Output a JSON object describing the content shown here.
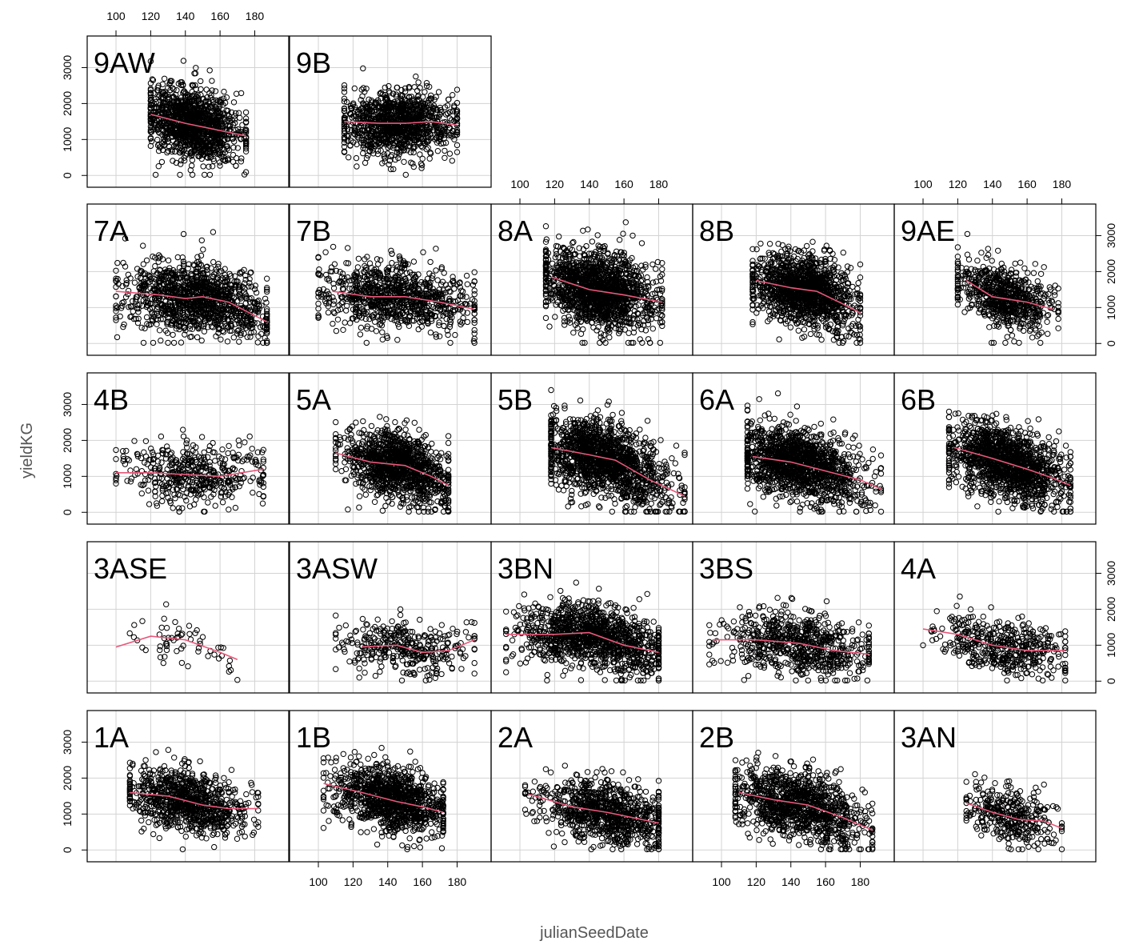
{
  "chart_data": {
    "type": "scatter",
    "xlabel": "julianSeedDate",
    "ylabel": "yieldKG",
    "x_ticks": [
      100,
      120,
      140,
      160,
      180
    ],
    "y_ticks": [
      0,
      1000,
      2000,
      3000
    ],
    "xlim": [
      88,
      195
    ],
    "ylim": [
      -150,
      3700
    ],
    "point_color": "#000000",
    "smooth_color": "#e8587a",
    "grid_color": "#d3d3d3",
    "panels": [
      {
        "label": "1A",
        "row": 0,
        "col": 0,
        "x_range": [
          108,
          182
        ],
        "x_center": 142,
        "y_center": 1350,
        "y_spread": 500,
        "n": 900,
        "smooth": [
          [
            108,
            1600
          ],
          [
            130,
            1500
          ],
          [
            150,
            1250
          ],
          [
            165,
            1150
          ],
          [
            182,
            1150
          ]
        ]
      },
      {
        "label": "1B",
        "row": 0,
        "col": 1,
        "x_range": [
          103,
          172
        ],
        "x_center": 142,
        "y_center": 1350,
        "y_spread": 520,
        "n": 1100,
        "smooth": [
          [
            103,
            1850
          ],
          [
            125,
            1600
          ],
          [
            145,
            1350
          ],
          [
            160,
            1200
          ],
          [
            172,
            1050
          ]
        ]
      },
      {
        "label": "2A",
        "row": 0,
        "col": 2,
        "x_range": [
          103,
          180
        ],
        "x_center": 150,
        "y_center": 1000,
        "y_spread": 500,
        "n": 900,
        "smooth": [
          [
            105,
            1550
          ],
          [
            130,
            1200
          ],
          [
            150,
            1050
          ],
          [
            165,
            900
          ],
          [
            180,
            750
          ]
        ]
      },
      {
        "label": "2B",
        "row": 0,
        "col": 3,
        "x_range": [
          108,
          187
        ],
        "x_center": 145,
        "y_center": 1300,
        "y_spread": 520,
        "n": 1100,
        "smooth": [
          [
            110,
            1600
          ],
          [
            130,
            1400
          ],
          [
            150,
            1250
          ],
          [
            170,
            900
          ],
          [
            187,
            550
          ]
        ]
      },
      {
        "label": "3AN",
        "row": 0,
        "col": 4,
        "x_range": [
          125,
          180
        ],
        "x_center": 150,
        "y_center": 950,
        "y_spread": 450,
        "n": 350,
        "smooth": [
          [
            125,
            1300
          ],
          [
            140,
            1050
          ],
          [
            155,
            850
          ],
          [
            170,
            800
          ],
          [
            180,
            600
          ]
        ]
      },
      {
        "label": "3ASE",
        "row": 1,
        "col": 0,
        "x_range": [
          100,
          170
        ],
        "x_center": 140,
        "y_center": 950,
        "y_spread": 350,
        "n": 60,
        "smooth": [
          [
            100,
            950
          ],
          [
            120,
            1250
          ],
          [
            140,
            1150
          ],
          [
            160,
            800
          ],
          [
            170,
            600
          ]
        ]
      },
      {
        "label": "3ASW",
        "row": 1,
        "col": 1,
        "x_range": [
          110,
          190
        ],
        "x_center": 150,
        "y_center": 900,
        "y_spread": 420,
        "n": 350,
        "smooth": [
          [
            125,
            950
          ],
          [
            145,
            1000
          ],
          [
            160,
            800
          ],
          [
            175,
            850
          ],
          [
            190,
            1150
          ]
        ]
      },
      {
        "label": "3BN",
        "row": 1,
        "col": 2,
        "x_range": [
          92,
          180
        ],
        "x_center": 142,
        "y_center": 1100,
        "y_spread": 520,
        "n": 1200,
        "smooth": [
          [
            92,
            1300
          ],
          [
            120,
            1300
          ],
          [
            140,
            1350
          ],
          [
            160,
            1000
          ],
          [
            180,
            800
          ]
        ]
      },
      {
        "label": "3BS",
        "row": 1,
        "col": 3,
        "x_range": [
          93,
          185
        ],
        "x_center": 145,
        "y_center": 950,
        "y_spread": 480,
        "n": 700,
        "smooth": [
          [
            95,
            1150
          ],
          [
            120,
            1150
          ],
          [
            145,
            1050
          ],
          [
            165,
            850
          ],
          [
            185,
            750
          ]
        ]
      },
      {
        "label": "4A",
        "row": 1,
        "col": 4,
        "x_range": [
          100,
          182
        ],
        "x_center": 145,
        "y_center": 950,
        "y_spread": 420,
        "n": 450,
        "smooth": [
          [
            100,
            1450
          ],
          [
            120,
            1300
          ],
          [
            140,
            1000
          ],
          [
            160,
            850
          ],
          [
            182,
            850
          ]
        ]
      },
      {
        "label": "4B",
        "row": 2,
        "col": 0,
        "x_range": [
          100,
          185
        ],
        "x_center": 145,
        "y_center": 1000,
        "y_spread": 500,
        "n": 450,
        "smooth": [
          [
            100,
            1100
          ],
          [
            120,
            1100
          ],
          [
            140,
            1050
          ],
          [
            160,
            1000
          ],
          [
            185,
            1200
          ]
        ]
      },
      {
        "label": "5A",
        "row": 2,
        "col": 1,
        "x_range": [
          110,
          175
        ],
        "x_center": 145,
        "y_center": 1300,
        "y_spread": 540,
        "n": 1200,
        "smooth": [
          [
            110,
            1650
          ],
          [
            130,
            1400
          ],
          [
            150,
            1300
          ],
          [
            165,
            1000
          ],
          [
            175,
            750
          ]
        ]
      },
      {
        "label": "5B",
        "row": 2,
        "col": 2,
        "x_range": [
          118,
          195
        ],
        "x_center": 148,
        "y_center": 1300,
        "y_spread": 620,
        "n": 1500,
        "smooth": [
          [
            118,
            1800
          ],
          [
            140,
            1600
          ],
          [
            155,
            1450
          ],
          [
            175,
            900
          ],
          [
            195,
            450
          ]
        ]
      },
      {
        "label": "6A",
        "row": 2,
        "col": 3,
        "x_range": [
          115,
          192
        ],
        "x_center": 145,
        "y_center": 1200,
        "y_spread": 560,
        "n": 1400,
        "smooth": [
          [
            118,
            1550
          ],
          [
            140,
            1400
          ],
          [
            160,
            1150
          ],
          [
            180,
            900
          ],
          [
            192,
            650
          ]
        ]
      },
      {
        "label": "6B",
        "row": 2,
        "col": 4,
        "x_range": [
          115,
          185
        ],
        "x_center": 148,
        "y_center": 1300,
        "y_spread": 560,
        "n": 1400,
        "smooth": [
          [
            118,
            1800
          ],
          [
            140,
            1500
          ],
          [
            160,
            1200
          ],
          [
            175,
            950
          ],
          [
            185,
            750
          ]
        ]
      },
      {
        "label": "7A",
        "row": 3,
        "col": 0,
        "x_range": [
          100,
          187
        ],
        "x_center": 145,
        "y_center": 1200,
        "y_spread": 580,
        "n": 1200,
        "smooth": [
          [
            100,
            1450
          ],
          [
            125,
            1350
          ],
          [
            140,
            1250
          ],
          [
            150,
            1300
          ],
          [
            165,
            1150
          ],
          [
            187,
            600
          ]
        ]
      },
      {
        "label": "7B",
        "row": 3,
        "col": 1,
        "x_range": [
          100,
          190
        ],
        "x_center": 145,
        "y_center": 1150,
        "y_spread": 540,
        "n": 900,
        "smooth": [
          [
            108,
            1450
          ],
          [
            130,
            1300
          ],
          [
            150,
            1300
          ],
          [
            170,
            1150
          ],
          [
            190,
            950
          ]
        ]
      },
      {
        "label": "8A",
        "row": 3,
        "col": 2,
        "x_range": [
          115,
          182
        ],
        "x_center": 145,
        "y_center": 1250,
        "y_spread": 620,
        "n": 1500,
        "smooth": [
          [
            118,
            1850
          ],
          [
            140,
            1500
          ],
          [
            160,
            1350
          ],
          [
            182,
            1150
          ]
        ]
      },
      {
        "label": "8B",
        "row": 3,
        "col": 3,
        "x_range": [
          118,
          180
        ],
        "x_center": 148,
        "y_center": 1250,
        "y_spread": 560,
        "n": 1400,
        "smooth": [
          [
            120,
            1750
          ],
          [
            140,
            1550
          ],
          [
            155,
            1450
          ],
          [
            170,
            1100
          ],
          [
            180,
            850
          ]
        ]
      },
      {
        "label": "9AE",
        "row": 3,
        "col": 4,
        "x_range": [
          120,
          178
        ],
        "x_center": 148,
        "y_center": 1150,
        "y_spread": 520,
        "n": 700,
        "smooth": [
          [
            125,
            1750
          ],
          [
            140,
            1300
          ],
          [
            160,
            1150
          ],
          [
            175,
            950
          ]
        ]
      },
      {
        "label": "9AW",
        "row": 4,
        "col": 0,
        "x_range": [
          120,
          175
        ],
        "x_center": 145,
        "y_center": 1350,
        "y_spread": 560,
        "n": 1200,
        "smooth": [
          [
            120,
            1700
          ],
          [
            140,
            1450
          ],
          [
            160,
            1250
          ],
          [
            175,
            1100
          ]
        ]
      },
      {
        "label": "9B",
        "row": 4,
        "col": 1,
        "x_range": [
          115,
          180
        ],
        "x_center": 145,
        "y_center": 1400,
        "y_spread": 520,
        "n": 1100,
        "smooth": [
          [
            115,
            1500
          ],
          [
            135,
            1450
          ],
          [
            150,
            1450
          ],
          [
            165,
            1500
          ],
          [
            180,
            1400
          ]
        ]
      }
    ]
  }
}
